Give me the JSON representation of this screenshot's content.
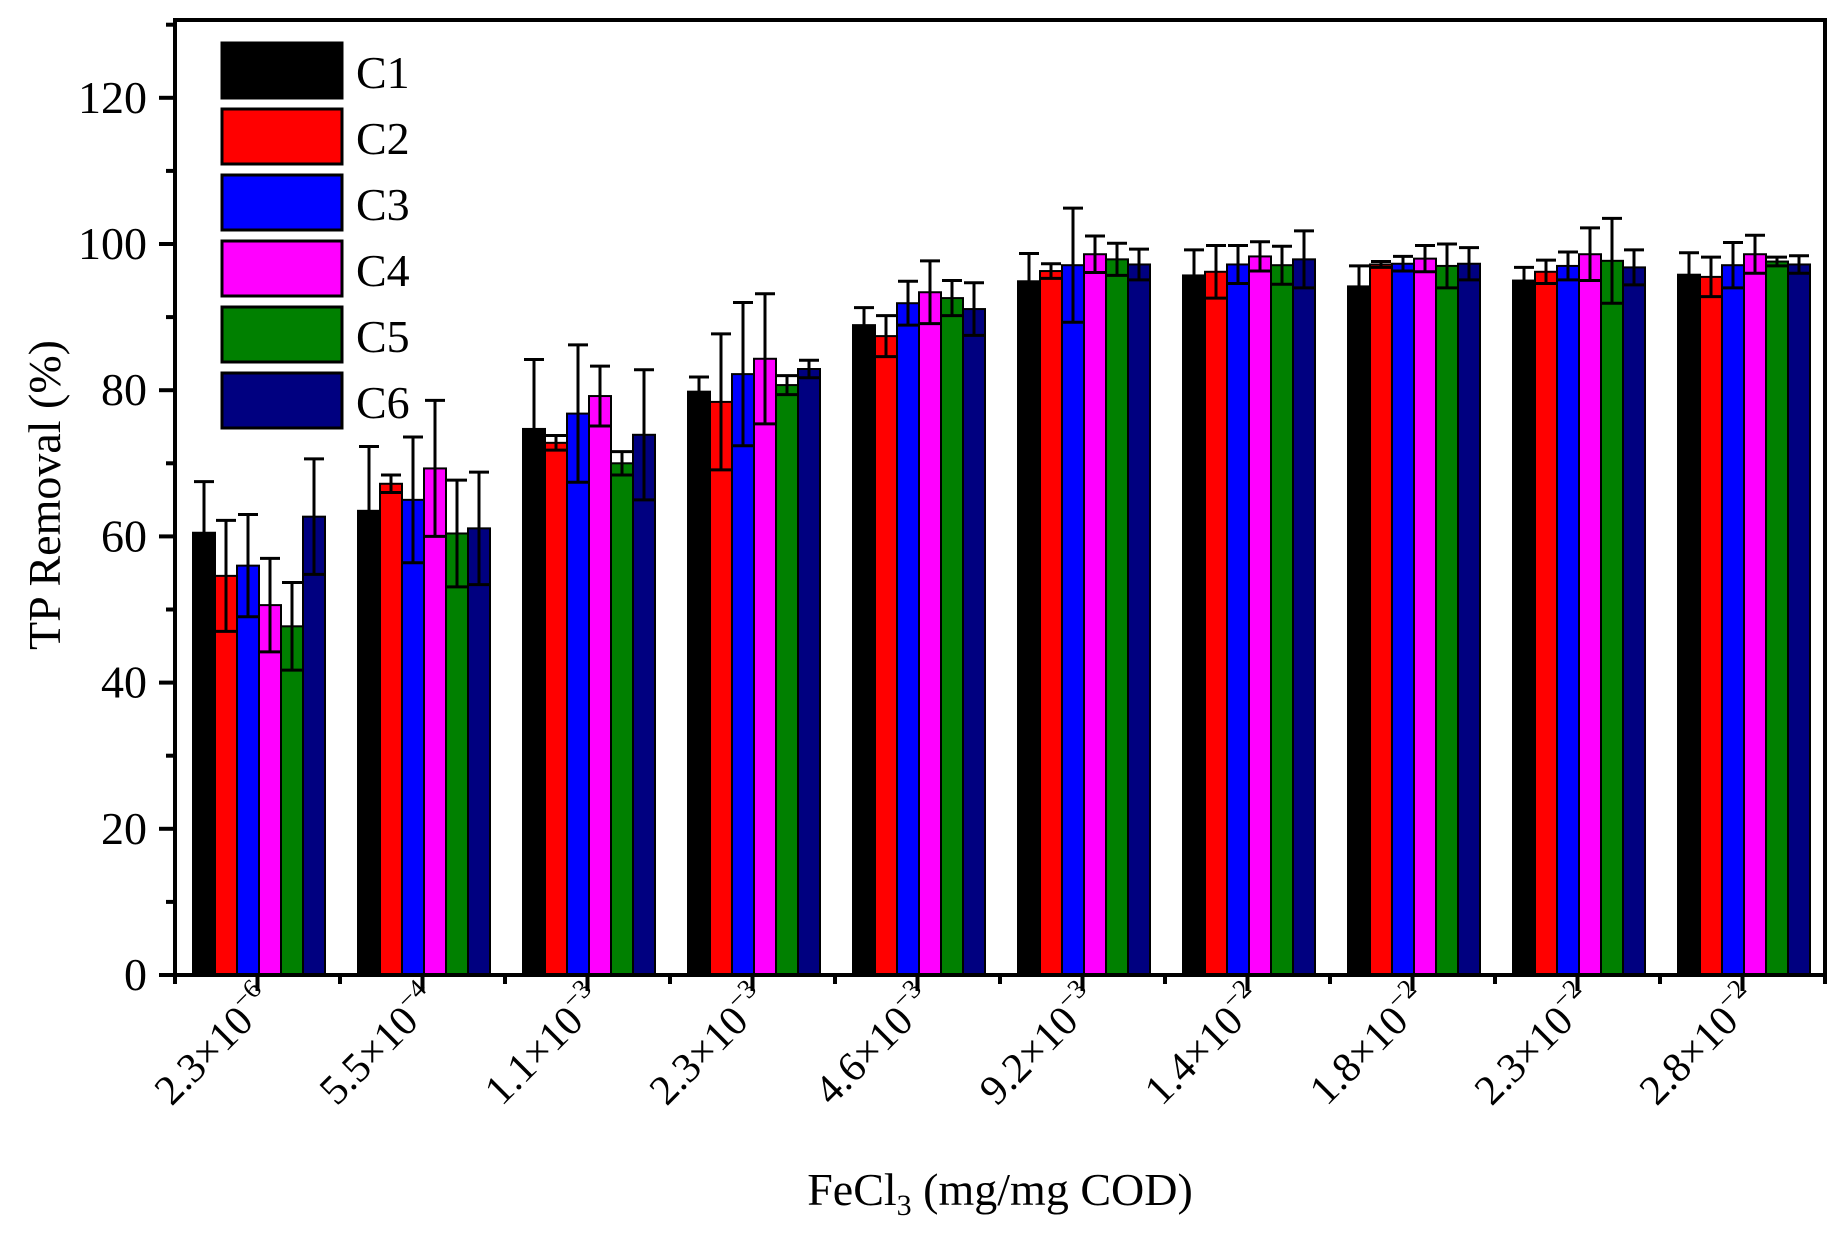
{
  "chart_data": {
    "type": "bar",
    "title": "",
    "xlabel_main": "FeCl",
    "xlabel_sub": "3",
    "xlabel_tail": " (mg/mg COD)",
    "ylabel": "TP Removal (%)",
    "ylim": [
      0,
      130
    ],
    "yticks": [
      0,
      20,
      40,
      60,
      80,
      100,
      120
    ],
    "grid": false,
    "legend_position": "top-left",
    "categories": [
      {
        "base": "2.3×10",
        "exp": "−6"
      },
      {
        "base": "5.5×10",
        "exp": "−4"
      },
      {
        "base": "1.1×10",
        "exp": "−3"
      },
      {
        "base": "2.3×10",
        "exp": "−3"
      },
      {
        "base": "4.6×10",
        "exp": "−3"
      },
      {
        "base": "9.2×10",
        "exp": "−3"
      },
      {
        "base": "1.4×10",
        "exp": "−2"
      },
      {
        "base": "1.8×10",
        "exp": "−2"
      },
      {
        "base": "2.3×10",
        "exp": "−2"
      },
      {
        "base": "2.8×10",
        "exp": "−2"
      }
    ],
    "series": [
      {
        "name": "C1",
        "color": "#000000",
        "values": [
          60.5,
          63.5,
          74.7,
          79.8,
          88.9,
          94.9,
          95.7,
          94.2,
          95.0,
          95.8
        ],
        "errors": [
          7.0,
          8.8,
          9.5,
          2.0,
          2.4,
          3.8,
          3.5,
          2.8,
          1.8,
          3.0
        ]
      },
      {
        "name": "C2",
        "color": "#ff0000",
        "values": [
          54.6,
          67.2,
          72.8,
          78.4,
          87.4,
          96.3,
          96.2,
          97.2,
          96.2,
          95.5
        ],
        "errors": [
          7.6,
          1.2,
          1.0,
          9.3,
          2.8,
          1.0,
          3.6,
          0.4,
          1.6,
          2.7
        ]
      },
      {
        "name": "C3",
        "color": "#0000ff",
        "values": [
          56.0,
          65.0,
          76.8,
          82.2,
          91.9,
          97.1,
          97.2,
          97.3,
          97.0,
          97.1
        ],
        "errors": [
          7.0,
          8.6,
          9.4,
          9.8,
          3.0,
          7.8,
          2.6,
          1.0,
          1.9,
          3.1
        ]
      },
      {
        "name": "C4",
        "color": "#ff00ff",
        "values": [
          50.6,
          69.3,
          79.2,
          84.3,
          93.4,
          98.6,
          98.3,
          98.0,
          98.6,
          98.6
        ],
        "errors": [
          6.4,
          9.3,
          4.1,
          8.9,
          4.3,
          2.5,
          2.0,
          1.8,
          3.6,
          2.6
        ]
      },
      {
        "name": "C5",
        "color": "#008000",
        "values": [
          47.7,
          60.4,
          70.0,
          80.7,
          92.6,
          97.9,
          97.1,
          97.0,
          97.7,
          97.6
        ],
        "errors": [
          6.0,
          7.3,
          1.6,
          1.3,
          2.4,
          2.2,
          2.6,
          3.0,
          5.8,
          0.6
        ]
      },
      {
        "name": "C6",
        "color": "#000080",
        "values": [
          62.7,
          61.1,
          73.9,
          82.9,
          91.1,
          97.2,
          97.9,
          97.3,
          96.8,
          97.2
        ],
        "errors": [
          7.9,
          7.7,
          8.9,
          1.2,
          3.6,
          2.1,
          3.9,
          2.2,
          2.4,
          1.2
        ]
      }
    ]
  }
}
